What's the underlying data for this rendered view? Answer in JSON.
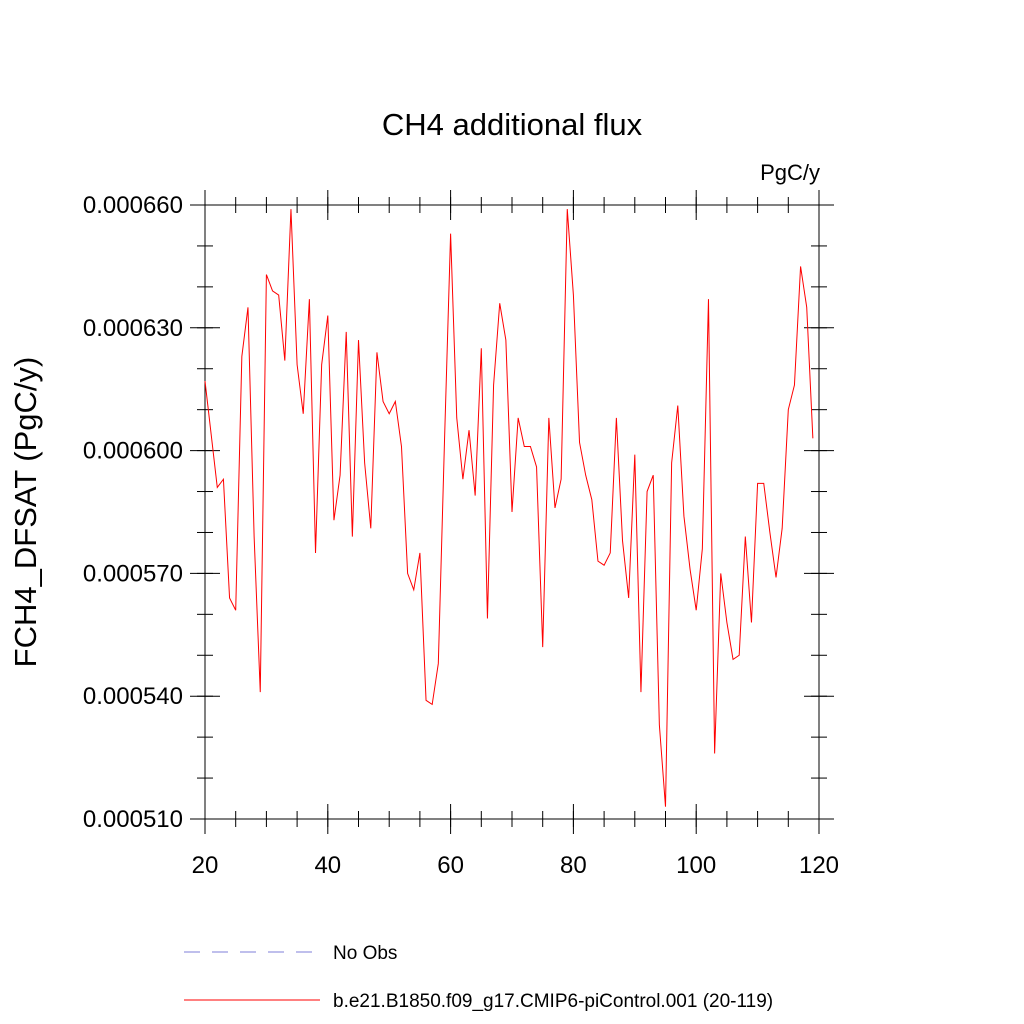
{
  "chart_data": {
    "type": "line",
    "title": "CH4 additional flux",
    "units": "PgC/y",
    "ylabel": "FCH4_DFSAT  (PgC/y)",
    "xlabel": "",
    "xlim": [
      20,
      120
    ],
    "ylim": [
      0.00051,
      0.00066
    ],
    "xticks": [
      20,
      40,
      60,
      80,
      100,
      120
    ],
    "x_tick_labels": [
      "20",
      "40",
      "60",
      "80",
      "100",
      "120"
    ],
    "yticks": [
      0.00051,
      0.00054,
      0.00057,
      0.0006,
      0.00063,
      0.00066
    ],
    "y_tick_labels": [
      "0.000510",
      "0.000540",
      "0.000570",
      "0.000600",
      "0.000630",
      "0.000660"
    ],
    "y_minor_step": 1e-05,
    "x_minor_step": 5,
    "legend_position": "bottom",
    "series": [
      {
        "name": "No Obs",
        "color": "#7f7fd8",
        "dash": "dashed",
        "x": [],
        "values": []
      },
      {
        "name": "b.e21.B1850.f09_g17.CMIP6-piControl.001 (20-119)",
        "color": "#ff0000",
        "dash": "solid",
        "x": [
          20,
          21,
          22,
          23,
          24,
          25,
          26,
          27,
          28,
          29,
          30,
          31,
          32,
          33,
          34,
          35,
          36,
          37,
          38,
          39,
          40,
          41,
          42,
          43,
          44,
          45,
          46,
          47,
          48,
          49,
          50,
          51,
          52,
          53,
          54,
          55,
          56,
          57,
          58,
          59,
          60,
          61,
          62,
          63,
          64,
          65,
          66,
          67,
          68,
          69,
          70,
          71,
          72,
          73,
          74,
          75,
          76,
          77,
          78,
          79,
          80,
          81,
          82,
          83,
          84,
          85,
          86,
          87,
          88,
          89,
          90,
          91,
          92,
          93,
          94,
          95,
          96,
          97,
          98,
          99,
          100,
          101,
          102,
          103,
          104,
          105,
          106,
          107,
          108,
          109,
          110,
          111,
          112,
          113,
          114,
          115,
          116,
          117,
          118,
          119
        ],
        "values": [
          0.000617,
          0.000604,
          0.000591,
          0.000593,
          0.000564,
          0.000561,
          0.000623,
          0.000635,
          0.000579,
          0.000541,
          0.000643,
          0.000639,
          0.000638,
          0.000622,
          0.000659,
          0.000621,
          0.000609,
          0.000637,
          0.000575,
          0.000621,
          0.000633,
          0.000583,
          0.000594,
          0.000629,
          0.000579,
          0.000627,
          0.000597,
          0.000581,
          0.000624,
          0.000612,
          0.000609,
          0.000612,
          0.000601,
          0.00057,
          0.000566,
          0.000575,
          0.000539,
          0.000538,
          0.000548,
          0.000602,
          0.000653,
          0.000608,
          0.000593,
          0.000605,
          0.000589,
          0.000625,
          0.000559,
          0.000616,
          0.000636,
          0.000627,
          0.000585,
          0.000608,
          0.000601,
          0.000601,
          0.000596,
          0.000552,
          0.000608,
          0.000586,
          0.000593,
          0.000659,
          0.000638,
          0.000602,
          0.000594,
          0.000588,
          0.000573,
          0.000572,
          0.000575,
          0.000608,
          0.000578,
          0.000564,
          0.000599,
          0.000541,
          0.00059,
          0.000594,
          0.000533,
          0.000513,
          0.000597,
          0.000611,
          0.000584,
          0.000571,
          0.000561,
          0.000576,
          0.000637,
          0.000526,
          0.00057,
          0.000558,
          0.000549,
          0.00055,
          0.000579,
          0.000558,
          0.000592,
          0.000592,
          0.00058,
          0.000569,
          0.000581,
          0.00061,
          0.000616,
          0.000645,
          0.000635,
          0.000603
        ]
      }
    ]
  }
}
